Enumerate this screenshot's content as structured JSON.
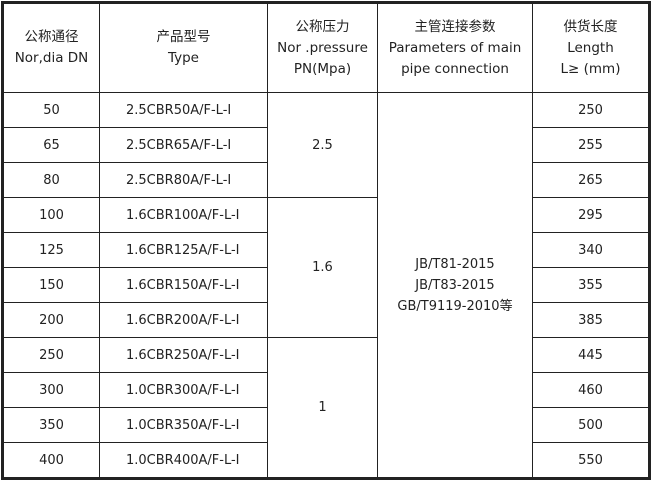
{
  "headers": [
    {
      "cn": "公称通径",
      "en1": "Nor,dia DN",
      "en2": ""
    },
    {
      "cn": "产品型号",
      "en1": "Type",
      "en2": ""
    },
    {
      "cn": "公称压力",
      "en1": "Nor .pressure",
      "en2": "PN(Mpa)"
    },
    {
      "cn": "主管连接参数",
      "en1": "Parameters of main",
      "en2": "pipe connection"
    },
    {
      "cn": "供货长度",
      "en1": "Length",
      "en2": "L≥ (mm)"
    }
  ],
  "rows": [
    {
      "dn": "50",
      "type": "2.5CBR50A/F-L-I",
      "length": "250"
    },
    {
      "dn": "65",
      "type": "2.5CBR65A/F-L-I",
      "length": "255"
    },
    {
      "dn": "80",
      "type": "2.5CBR80A/F-L-I",
      "length": "265"
    },
    {
      "dn": "100",
      "type": "1.6CBR100A/F-L-I",
      "length": "295"
    },
    {
      "dn": "125",
      "type": "1.6CBR125A/F-L-I",
      "length": "340"
    },
    {
      "dn": "150",
      "type": "1.6CBR150A/F-L-I",
      "length": "355"
    },
    {
      "dn": "200",
      "type": "1.6CBR200A/F-L-I",
      "length": "385"
    },
    {
      "dn": "250",
      "type": "1.6CBR250A/F-L-I",
      "length": "445"
    },
    {
      "dn": "300",
      "type": "1.0CBR300A/F-L-I",
      "length": "460"
    },
    {
      "dn": "350",
      "type": "1.0CBR350A/F-L-I",
      "length": "500"
    },
    {
      "dn": "400",
      "type": "1.0CBR400A/F-L-I",
      "length": "550"
    }
  ],
  "pressure": [
    "2.5",
    "1.6",
    "1"
  ],
  "connection": [
    "JB/T81-2015",
    "JB/T83-2015",
    "GB/T9119-2010等"
  ]
}
